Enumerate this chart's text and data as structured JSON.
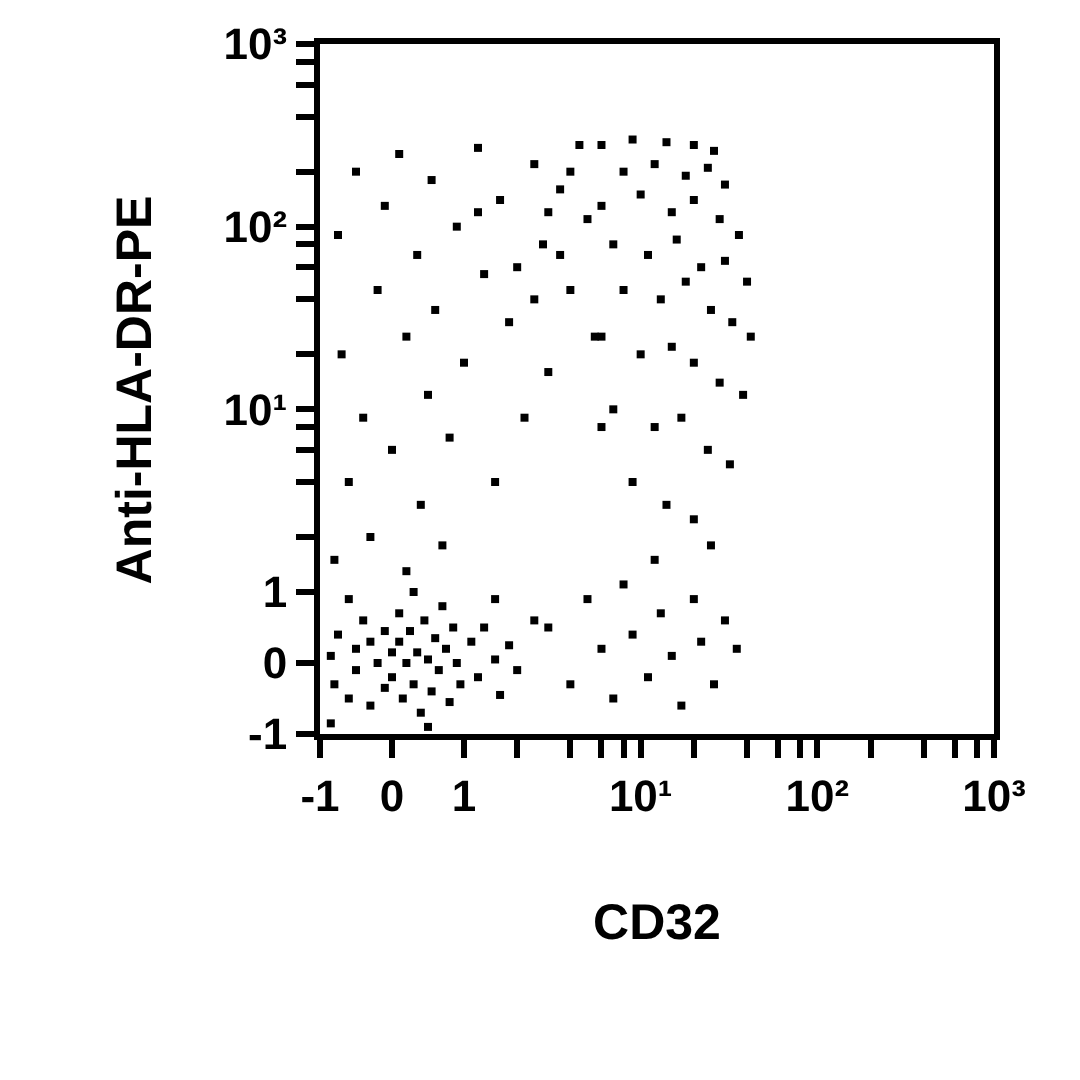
{
  "chart_data": [
    {
      "type": "scatter",
      "ylabel": "Anti-HLA-DR-PE",
      "color": "#000000",
      "marker": "square",
      "log": "y",
      "tick_labels": "y",
      "xlim": [
        -1,
        1
      ],
      "ylim": [
        1,
        1000
      ],
      "yticks": [
        {
          "value": 2,
          "label": null
        },
        {
          "value": 4,
          "label": null
        },
        {
          "value": 6,
          "label": null
        },
        {
          "value": 8,
          "label": null
        },
        {
          "value": 10,
          "label": "10¹"
        },
        {
          "value": 20,
          "label": null
        },
        {
          "value": 40,
          "label": null
        },
        {
          "value": 60,
          "label": null
        },
        {
          "value": 80,
          "label": null
        },
        {
          "value": 100,
          "label": "10²"
        },
        {
          "value": 200,
          "label": null
        },
        {
          "value": 400,
          "label": null
        },
        {
          "value": 600,
          "label": null
        },
        {
          "value": 800,
          "label": null
        },
        {
          "value": 1000,
          "label": "10³"
        }
      ],
      "x": [
        -0.8,
        -0.6,
        -0.7,
        -0.75,
        -0.5,
        -0.4,
        -0.3,
        -0.2,
        -0.1,
        0,
        0.1,
        0.2,
        0.2,
        0.35,
        0.4,
        0.5,
        0.55,
        0.6,
        0.7,
        0.8,
        0.9,
        1.0
      ],
      "values": [
        1.5,
        4,
        20,
        90,
        200,
        9,
        2,
        45,
        130,
        6,
        250,
        1.3,
        25,
        70,
        3,
        12,
        180,
        35,
        1.8,
        7,
        100,
        18
      ]
    },
    {
      "type": "scatter",
      "color": "#000000",
      "marker": "square",
      "log": "xy",
      "tick_labels": false,
      "xlim": [
        1,
        1000
      ],
      "ylim": [
        1,
        1000
      ],
      "x": [
        1.2,
        1.3,
        1.5,
        1.6,
        1.8,
        2.2,
        2.5,
        2.8,
        3,
        3.5,
        4,
        4.5,
        5,
        5.5,
        6,
        2,
        3,
        4,
        2.5,
        3.5,
        1.2,
        6,
        9,
        14,
        20,
        26,
        8,
        12,
        18,
        24,
        30,
        6,
        10,
        15,
        20,
        28,
        36,
        7,
        11,
        16,
        22,
        30,
        40,
        8,
        13,
        18,
        25,
        33,
        42,
        6,
        10,
        15,
        20,
        28,
        38,
        7,
        12,
        17,
        24,
        32,
        9,
        14,
        20,
        8,
        12,
        25
      ],
      "values": [
        270,
        55,
        4,
        140,
        30,
        9,
        220,
        80,
        16,
        160,
        45,
        280,
        110,
        25,
        8,
        60,
        120,
        200,
        40,
        70,
        120,
        280,
        300,
        290,
        280,
        260,
        200,
        220,
        190,
        210,
        170,
        130,
        150,
        120,
        140,
        110,
        90,
        80,
        70,
        85,
        60,
        65,
        50,
        45,
        40,
        50,
        35,
        30,
        25,
        25,
        20,
        22,
        18,
        14,
        12,
        10,
        8,
        9,
        6,
        5,
        4,
        3,
        2.5,
        1.1,
        1.5,
        1.8
      ]
    },
    {
      "type": "scatter",
      "color": "#000000",
      "marker": "square",
      "xlim": [
        -1,
        1
      ],
      "ylim": [
        -1,
        1
      ],
      "xticks": [
        -1,
        0,
        1
      ],
      "yticks": [
        -1,
        0,
        1
      ],
      "x": [
        -0.85,
        -0.8,
        -0.75,
        -0.6,
        -0.5,
        -0.5,
        -0.4,
        -0.3,
        -0.3,
        -0.2,
        -0.1,
        -0.1,
        0,
        0,
        0.1,
        0.1,
        0.15,
        0.2,
        0.25,
        0.3,
        0.35,
        0.4,
        0.45,
        0.5,
        0.55,
        0.6,
        0.65,
        0.7,
        0.75,
        0.8,
        0.85,
        0.9,
        0.95,
        -0.6,
        0.3,
        -0.85,
        0.5
      ],
      "values": [
        0.1,
        -0.3,
        0.4,
        -0.5,
        0.2,
        -0.1,
        0.6,
        -0.6,
        0.3,
        0,
        -0.35,
        0.45,
        0.15,
        -0.2,
        0.7,
        0.3,
        -0.5,
        0,
        0.45,
        -0.3,
        0.15,
        -0.7,
        0.6,
        0.05,
        -0.4,
        0.35,
        -0.1,
        0.8,
        0.2,
        -0.55,
        0.5,
        0,
        -0.3,
        0.9,
        1.0,
        -0.85,
        -0.9
      ]
    },
    {
      "type": "scatter",
      "xlabel": "CD32",
      "color": "#000000",
      "marker": "square",
      "log": "x",
      "tick_labels": "x",
      "xlim": [
        1,
        1000
      ],
      "ylim": [
        -1,
        1
      ],
      "xticks": [
        {
          "value": 2,
          "label": null
        },
        {
          "value": 4,
          "label": null
        },
        {
          "value": 6,
          "label": null
        },
        {
          "value": 8,
          "label": null
        },
        {
          "value": 10,
          "label": "10¹"
        },
        {
          "value": 20,
          "label": null
        },
        {
          "value": 40,
          "label": null
        },
        {
          "value": 60,
          "label": null
        },
        {
          "value": 80,
          "label": null
        },
        {
          "value": 100,
          "label": "10²"
        },
        {
          "value": 200,
          "label": null
        },
        {
          "value": 400,
          "label": null
        },
        {
          "value": 600,
          "label": null
        },
        {
          "value": 800,
          "label": null
        },
        {
          "value": 1000,
          "label": "10³"
        }
      ],
      "x": [
        1.1,
        1.2,
        1.3,
        1.5,
        1.6,
        1.8,
        2.0,
        1.5,
        2.5,
        3,
        4,
        5,
        6,
        7,
        9,
        11,
        13,
        15,
        17,
        20,
        22,
        26,
        30,
        35
      ],
      "values": [
        0.3,
        -0.2,
        0.5,
        0.05,
        -0.45,
        0.25,
        -0.1,
        0.9,
        0.6,
        0.5,
        -0.3,
        0.9,
        0.2,
        -0.5,
        0.4,
        -0.2,
        0.7,
        0.1,
        -0.6,
        0.9,
        0.3,
        -0.3,
        0.6,
        0.2
      ]
    }
  ]
}
